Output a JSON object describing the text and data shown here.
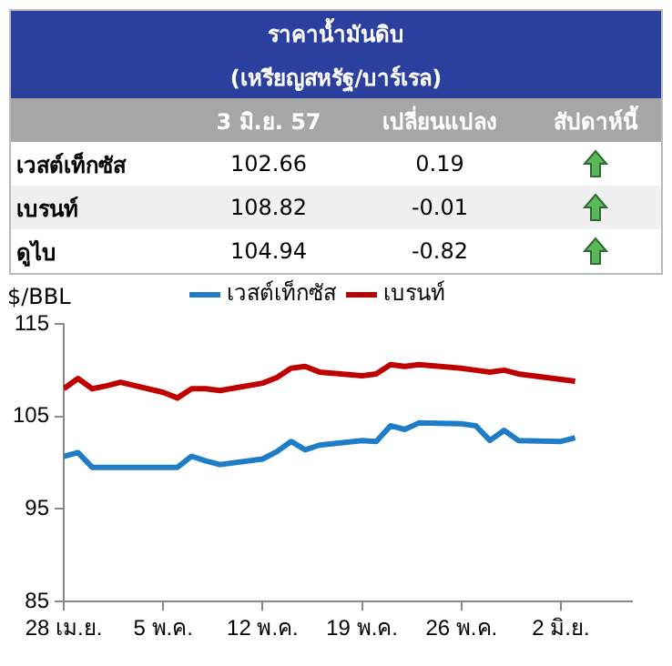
{
  "chart_data": [
    {
      "type": "other",
      "title": "ราคาน้ำมันดิบ",
      "subtitle": "(เหรียญสหรัฐ/บาร์เรล)",
      "annotations": [
        "3 มิ.ย. 57",
        "เปลี่ยนแปลง",
        "สัปดาห์นี้",
        "เวสต์เท็กซัส",
        "102.66",
        "0.19",
        "เบรนท์",
        "108.82",
        "-0.01",
        "ดูไบ",
        "104.94",
        "-0.82"
      ]
    },
    {
      "type": "line",
      "ylabel": "$/BBL",
      "legend": "top",
      "grid": false,
      "marker": "none",
      "xlim": [
        "--04-28",
        "--06-07"
      ],
      "xticks": [
        {
          "value": "--04-28",
          "label": "28 เม.ย."
        },
        {
          "value": "--05-05",
          "label": "5 พ.ค."
        },
        {
          "value": "--05-12",
          "label": "12 พ.ค."
        },
        {
          "value": "--05-19",
          "label": "19 พ.ค."
        },
        {
          "value": "--05-26",
          "label": "26 พ.ค."
        },
        {
          "value": "--06-02",
          "label": "2 มิ.ย."
        }
      ],
      "ylim": [
        85,
        115
      ],
      "yticks": [
        85,
        95,
        105,
        115
      ],
      "x": [
        "--04-28",
        "--04-29",
        "--04-30",
        "--05-01",
        "--05-02",
        "--05-05",
        "--05-06",
        "--05-07",
        "--05-08",
        "--05-09",
        "--05-12",
        "--05-13",
        "--05-14",
        "--05-15",
        "--05-16",
        "--05-19",
        "--05-20",
        "--05-21",
        "--05-22",
        "--05-23",
        "--05-26",
        "--05-27",
        "--05-28",
        "--05-29",
        "--05-30",
        "--06-02",
        "--06-03"
      ],
      "series": [
        {
          "name": "เวสต์เท็กซัส",
          "color": "#1f7dc7",
          "values": [
            100.7,
            101.1,
            99.5,
            99.5,
            99.5,
            99.5,
            99.5,
            100.7,
            100.2,
            99.8,
            100.4,
            101.2,
            102.3,
            101.4,
            101.9,
            102.4,
            102.3,
            104.0,
            103.6,
            104.3,
            104.2,
            104.0,
            102.4,
            103.5,
            102.4,
            102.3,
            102.7
          ]
        },
        {
          "name": "เบรนท์",
          "color": "#c00000",
          "values": [
            108.0,
            109.1,
            108.0,
            108.3,
            108.7,
            107.6,
            107.0,
            108.0,
            108.0,
            107.8,
            108.6,
            109.2,
            110.2,
            110.4,
            109.8,
            109.4,
            109.6,
            110.6,
            110.4,
            110.6,
            110.2,
            110.0,
            109.8,
            110.0,
            109.6,
            109.0,
            108.8
          ]
        }
      ]
    }
  ]
}
